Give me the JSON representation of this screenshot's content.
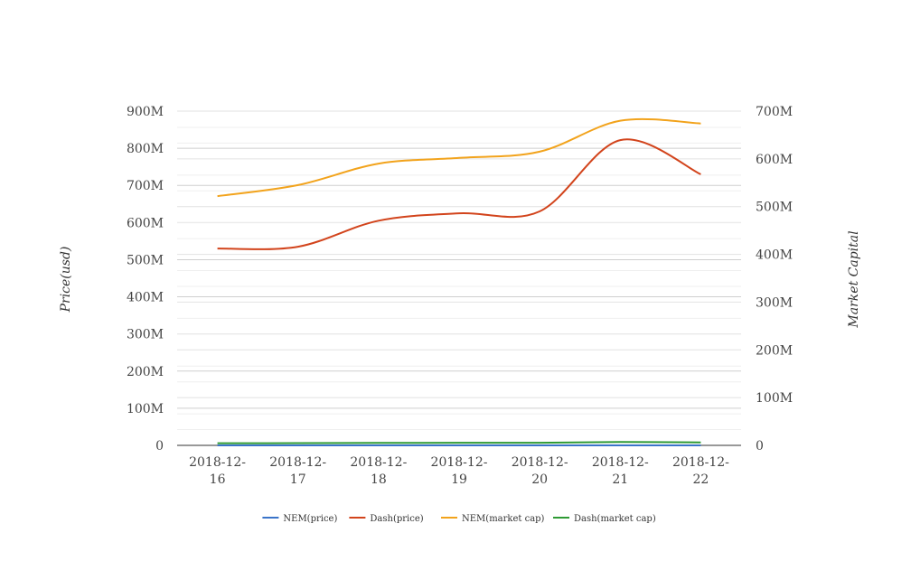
{
  "chart_data": {
    "type": "line",
    "categories": [
      [
        "2018-12-",
        "16"
      ],
      [
        "2018-12-",
        "17"
      ],
      [
        "2018-12-",
        "18"
      ],
      [
        "2018-12-",
        "19"
      ],
      [
        "2018-12-",
        "20"
      ],
      [
        "2018-12-",
        "21"
      ],
      [
        "2018-12-",
        "22"
      ]
    ],
    "y_left": {
      "label": "Price(usd)",
      "range": [
        0,
        900000000
      ],
      "ticks": [
        "0",
        "100M",
        "200M",
        "300M",
        "400M",
        "500M",
        "600M",
        "700M",
        "800M",
        "900M"
      ]
    },
    "y_right": {
      "label": "Market Capital",
      "range": [
        0,
        700000000
      ],
      "ticks": [
        "0",
        "100M",
        "200M",
        "300M",
        "400M",
        "500M",
        "600M",
        "700M"
      ]
    },
    "series": [
      {
        "name": "NEM(price)",
        "axis": "left",
        "color": "#3a74c9",
        "values": [
          0.3,
          0.32,
          0.31,
          0.3,
          0.29,
          0.35,
          0.33
        ]
      },
      {
        "name": "Dash(price)",
        "axis": "left",
        "color": "#d2441c",
        "values": [
          530000000,
          535000000,
          605000000,
          625000000,
          630000000,
          822000000,
          730000000
        ]
      },
      {
        "name": "NEM(market cap)",
        "axis": "right",
        "color": "#f2a31c",
        "values": [
          522000000,
          545000000,
          590000000,
          602000000,
          615000000,
          680000000,
          674000000
        ]
      },
      {
        "name": "Dash(market cap)",
        "axis": "right",
        "color": "#2e9a34",
        "values": [
          4600000,
          4700000,
          5200000,
          5400000,
          5500000,
          7000000,
          6300000
        ]
      }
    ],
    "grid": true,
    "legend": "bottom"
  }
}
